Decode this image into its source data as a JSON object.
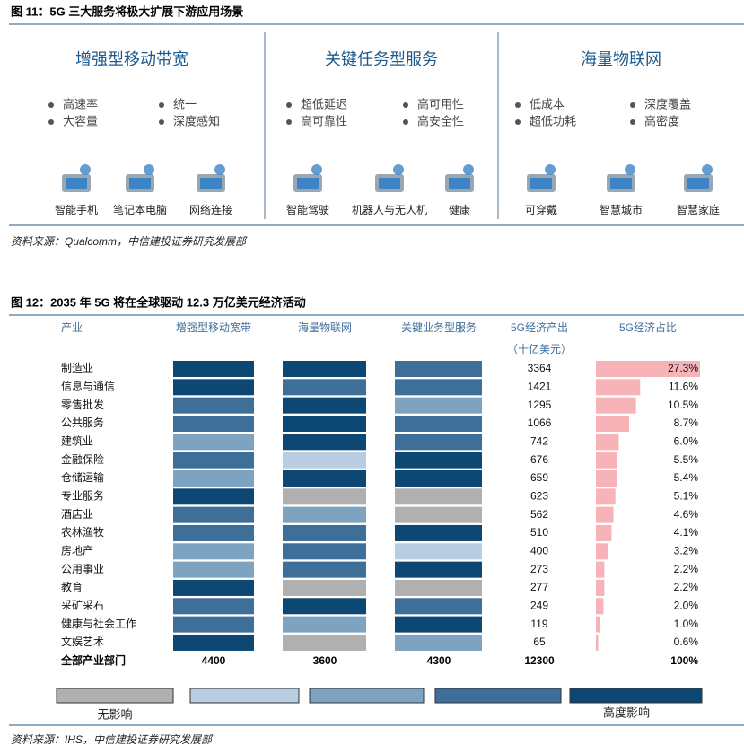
{
  "figure11": {
    "title": "图 11：5G 三大服务将极大扩展下游应用场景",
    "panels": [
      {
        "title": "增强型移动带宽",
        "features": [
          [
            "高速率",
            "大容量"
          ],
          [
            "统一",
            "深度感知"
          ]
        ],
        "uses": [
          "智能手机",
          "笔记本电脑",
          "网络连接"
        ]
      },
      {
        "title": "关键任务型服务",
        "features": [
          [
            "超低延迟",
            "高可靠性"
          ],
          [
            "高可用性",
            "高安全性"
          ]
        ],
        "uses": [
          "智能驾驶",
          "机器人与无人机",
          "健康"
        ]
      },
      {
        "title": "海量物联网",
        "features": [
          [
            "低成本",
            "超低功耗"
          ],
          [
            "深度覆盖",
            "高密度"
          ]
        ],
        "uses": [
          "可穿戴",
          "智慧城市",
          "智慧家庭"
        ]
      }
    ],
    "source": "资料来源：Qualcomm，中信建投证券研究发展部"
  },
  "figure12": {
    "title": "图 12：2035 年 5G 将在全球驱动 12.3 万亿美元经济活动",
    "headers": [
      "产业",
      "增强型移动宽带",
      "海量物联网",
      "关键业务型服务",
      "5G经济产出",
      "5G经济占比"
    ],
    "unit": "（十亿美元）",
    "rows": [
      {
        "industry": "制造业",
        "colors": [
          "#0d4774",
          "#0d4774",
          "#3d6f99"
        ],
        "output": 3364,
        "share": 27.3,
        "share_label": "27.3%"
      },
      {
        "industry": "信息与通信",
        "colors": [
          "#0d4774",
          "#3d6f99",
          "#3d6f99"
        ],
        "output": 1421,
        "share": 11.6,
        "share_label": "11.6%"
      },
      {
        "industry": "零售批发",
        "colors": [
          "#3d6f99",
          "#0d4774",
          "#7ea3c0"
        ],
        "output": 1295,
        "share": 10.5,
        "share_label": "10.5%"
      },
      {
        "industry": "公共服务",
        "colors": [
          "#3d6f99",
          "#0d4774",
          "#3d6f99"
        ],
        "output": 1066,
        "share": 8.7,
        "share_label": "8.7%"
      },
      {
        "industry": "建筑业",
        "colors": [
          "#7ea3c0",
          "#0d4774",
          "#3d6f99"
        ],
        "output": 742,
        "share": 6.0,
        "share_label": "6.0%"
      },
      {
        "industry": "金融保险",
        "colors": [
          "#3d6f99",
          "#b8cde0",
          "#0d4774"
        ],
        "output": 676,
        "share": 5.5,
        "share_label": "5.5%"
      },
      {
        "industry": "仓储运输",
        "colors": [
          "#7ea3c0",
          "#0d4774",
          "#0d4774"
        ],
        "output": 659,
        "share": 5.4,
        "share_label": "5.4%"
      },
      {
        "industry": "专业服务",
        "colors": [
          "#0d4774",
          "#b0b0b0",
          "#b0b0b0"
        ],
        "output": 623,
        "share": 5.1,
        "share_label": "5.1%"
      },
      {
        "industry": "酒店业",
        "colors": [
          "#3d6f99",
          "#7ea3c0",
          "#b0b0b0"
        ],
        "output": 562,
        "share": 4.6,
        "share_label": "4.6%"
      },
      {
        "industry": "农林渔牧",
        "colors": [
          "#3d6f99",
          "#3d6f99",
          "#0d4774"
        ],
        "output": 510,
        "share": 4.1,
        "share_label": "4.1%"
      },
      {
        "industry": "房地产",
        "colors": [
          "#7ea3c0",
          "#3d6f99",
          "#b8cde0"
        ],
        "output": 400,
        "share": 3.2,
        "share_label": "3.2%"
      },
      {
        "industry": "公用事业",
        "colors": [
          "#7ea3c0",
          "#3d6f99",
          "#0d4774"
        ],
        "output": 273,
        "share": 2.2,
        "share_label": "2.2%"
      },
      {
        "industry": "教育",
        "colors": [
          "#0d4774",
          "#b0b0b0",
          "#b0b0b0"
        ],
        "output": 277,
        "share": 2.2,
        "share_label": "2.2%"
      },
      {
        "industry": "采矿采石",
        "colors": [
          "#3d6f99",
          "#0d4774",
          "#3d6f99"
        ],
        "output": 249,
        "share": 2.0,
        "share_label": "2.0%"
      },
      {
        "industry": "健康与社会工作",
        "colors": [
          "#3d6f99",
          "#7ea3c0",
          "#0d4774"
        ],
        "output": 119,
        "share": 1.0,
        "share_label": "1.0%"
      },
      {
        "industry": "文娱艺术",
        "colors": [
          "#0d4774",
          "#b0b0b0",
          "#7ea3c0"
        ],
        "output": 65,
        "share": 0.6,
        "share_label": "0.6%"
      }
    ],
    "total": {
      "label": "全部产业部门",
      "values": [
        4400,
        3600,
        4300,
        12300
      ],
      "share_label": "100%"
    },
    "share_color": "#f7b3b8",
    "legend": {
      "colors": [
        "#b0b0b0",
        "#b8cde0",
        "#7ea3c0",
        "#3d6f99",
        "#0d4774"
      ],
      "low_label": "无影响",
      "high_label": "高度影响"
    },
    "source": "资料来源：IHS，中信建投证券研究发展部"
  }
}
